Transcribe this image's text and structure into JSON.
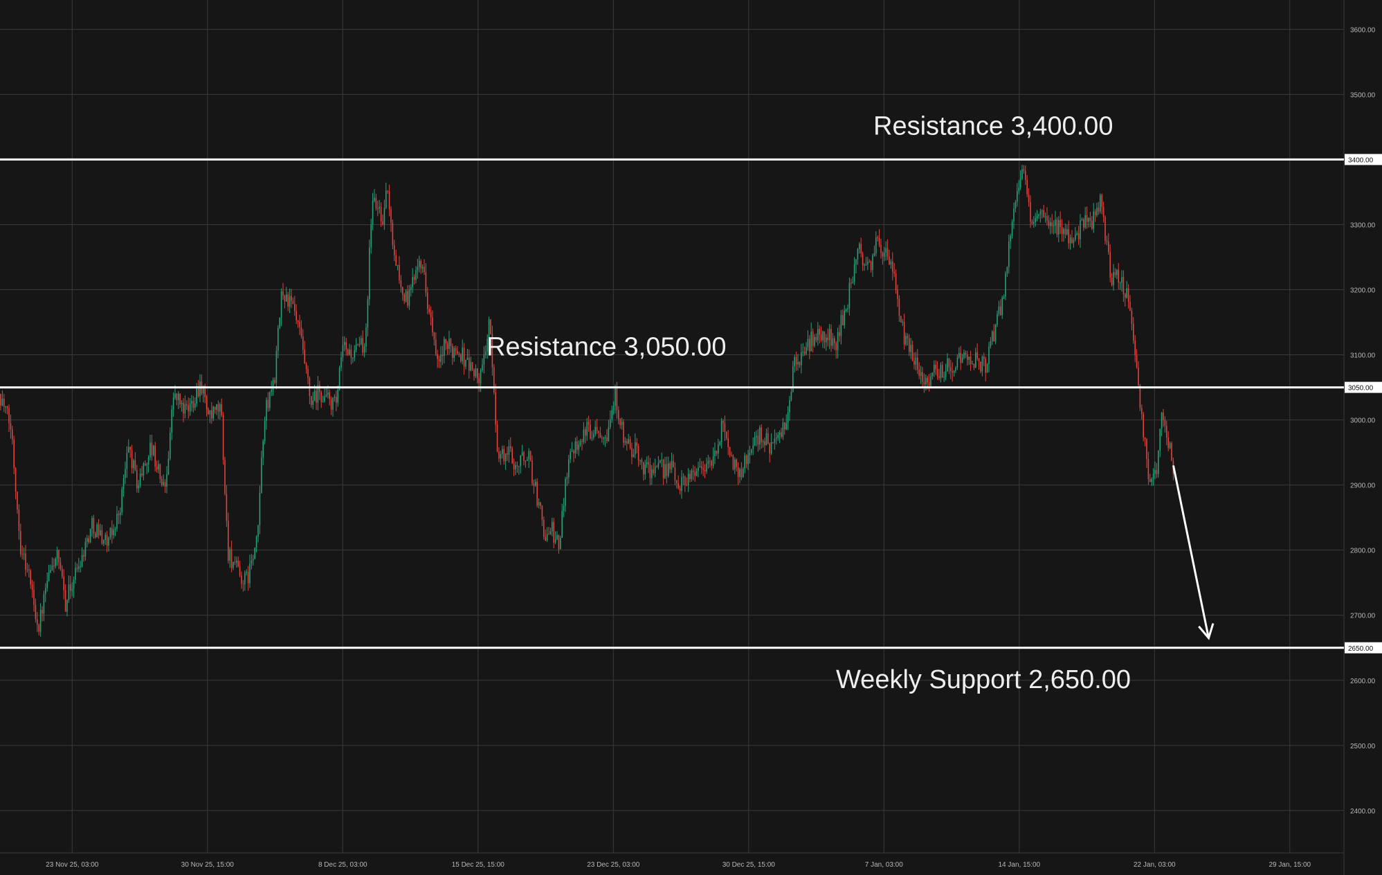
{
  "colors": {
    "background": "#161616",
    "grid": "#3a3a3a",
    "axis_text": "#b8b8b8",
    "level_line": "#ffffff",
    "candle_up": "#26a27a",
    "candle_down": "#e0443f",
    "arrow": "#ffffff"
  },
  "chart_data": {
    "type": "candlestick",
    "title": "",
    "xlabel": "",
    "ylabel": "",
    "ylim": [
      2335,
      3645
    ],
    "y_ticks": [
      {
        "value": 2400,
        "label": "2400.00"
      },
      {
        "value": 2500,
        "label": "2500.00"
      },
      {
        "value": 2600,
        "label": "2600.00"
      },
      {
        "value": 2700,
        "label": "2700.00"
      },
      {
        "value": 2800,
        "label": "2800.00"
      },
      {
        "value": 2900,
        "label": "2900.00"
      },
      {
        "value": 3000,
        "label": "3000.00"
      },
      {
        "value": 3100,
        "label": "3100.00"
      },
      {
        "value": 3200,
        "label": "3200.00"
      },
      {
        "value": 3300,
        "label": "3300.00"
      },
      {
        "value": 3500,
        "label": "3500.00"
      },
      {
        "value": 3600,
        "label": "3600.00"
      }
    ],
    "x_range": [
      "2025-11-19 03:00",
      "2026-02-01 15:00"
    ],
    "x_ticks": [
      {
        "date": "2025-11-23 03:00",
        "label": "23 Nov 25, 03:00"
      },
      {
        "date": "2025-11-30 15:00",
        "label": "30 Nov 25, 15:00"
      },
      {
        "date": "2025-12-08 03:00",
        "label": "8 Dec 25, 03:00"
      },
      {
        "date": "2025-12-15 15:00",
        "label": "15 Dec 25, 15:00"
      },
      {
        "date": "2025-12-23 03:00",
        "label": "23 Dec 25, 03:00"
      },
      {
        "date": "2025-12-30 15:00",
        "label": "30 Dec 25, 15:00"
      },
      {
        "date": "2026-01-07 03:00",
        "label": "7 Jan, 03:00"
      },
      {
        "date": "2026-01-14 15:00",
        "label": "14 Jan, 15:00"
      },
      {
        "date": "2026-01-22 03:00",
        "label": "22 Jan, 03:00"
      },
      {
        "date": "2026-01-29 15:00",
        "label": "29 Jan, 15:00"
      }
    ],
    "grid": true,
    "levels": [
      {
        "value": 3400,
        "axis_label": "3400.00",
        "annotation": "Resistance 3,400.00"
      },
      {
        "value": 3050,
        "axis_label": "3050.00",
        "annotation": "Resistance 3,050.00"
      },
      {
        "value": 2650,
        "axis_label": "2650.00",
        "annotation": "Weekly Support 2,650.00"
      }
    ],
    "projection_arrow": {
      "from": {
        "date": "2026-01-23 04:00",
        "value": 2930
      },
      "to": {
        "date": "2026-01-25 03:00",
        "value": 2665
      }
    },
    "price_path": [
      {
        "date": "2025-11-19 03:00",
        "close": 3040
      },
      {
        "date": "2025-11-19 18:00",
        "close": 2985
      },
      {
        "date": "2025-11-20 06:00",
        "close": 2810
      },
      {
        "date": "2025-11-20 18:00",
        "close": 2760
      },
      {
        "date": "2025-11-21 06:00",
        "close": 2680
      },
      {
        "date": "2025-11-21 18:00",
        "close": 2750
      },
      {
        "date": "2025-11-22 06:00",
        "close": 2795
      },
      {
        "date": "2025-11-22 18:00",
        "close": 2720
      },
      {
        "date": "2025-11-23 06:00",
        "close": 2760
      },
      {
        "date": "2025-11-24 06:00",
        "close": 2840
      },
      {
        "date": "2025-11-25 03:00",
        "close": 2810
      },
      {
        "date": "2025-11-25 18:00",
        "close": 2860
      },
      {
        "date": "2025-11-26 06:00",
        "close": 2960
      },
      {
        "date": "2025-11-26 18:00",
        "close": 2900
      },
      {
        "date": "2025-11-27 12:00",
        "close": 2960
      },
      {
        "date": "2025-11-28 06:00",
        "close": 2890
      },
      {
        "date": "2025-11-28 18:00",
        "close": 3040
      },
      {
        "date": "2025-11-29 12:00",
        "close": 3010
      },
      {
        "date": "2025-11-30 06:00",
        "close": 3060
      },
      {
        "date": "2025-11-30 18:00",
        "close": 3000
      },
      {
        "date": "2025-12-01 09:00",
        "close": 3020
      },
      {
        "date": "2025-12-01 18:00",
        "close": 2800
      },
      {
        "date": "2025-12-02 09:00",
        "close": 2760
      },
      {
        "date": "2025-12-02 18:00",
        "close": 2750
      },
      {
        "date": "2025-12-03 09:00",
        "close": 2810
      },
      {
        "date": "2025-12-03 18:00",
        "close": 3000
      },
      {
        "date": "2025-12-04 09:00",
        "close": 3070
      },
      {
        "date": "2025-12-04 18:00",
        "close": 3200
      },
      {
        "date": "2025-12-05 09:00",
        "close": 3170
      },
      {
        "date": "2025-12-05 18:00",
        "close": 3130
      },
      {
        "date": "2025-12-06 09:00",
        "close": 3020
      },
      {
        "date": "2025-12-06 18:00",
        "close": 3040
      },
      {
        "date": "2025-12-07 09:00",
        "close": 3030
      },
      {
        "date": "2025-12-07 18:00",
        "close": 3020
      },
      {
        "date": "2025-12-08 03:00",
        "close": 3110
      },
      {
        "date": "2025-12-08 18:00",
        "close": 3100
      },
      {
        "date": "2025-12-09 09:00",
        "close": 3120
      },
      {
        "date": "2025-12-09 18:00",
        "close": 3340
      },
      {
        "date": "2025-12-10 09:00",
        "close": 3310
      },
      {
        "date": "2025-12-10 15:00",
        "close": 3360
      },
      {
        "date": "2025-12-10 18:00",
        "close": 3300
      },
      {
        "date": "2025-12-11 09:00",
        "close": 3200
      },
      {
        "date": "2025-12-11 18:00",
        "close": 3180
      },
      {
        "date": "2025-12-12 09:00",
        "close": 3260
      },
      {
        "date": "2025-12-12 18:00",
        "close": 3200
      },
      {
        "date": "2025-12-13 09:00",
        "close": 3080
      },
      {
        "date": "2025-12-13 18:00",
        "close": 3110
      },
      {
        "date": "2025-12-14 12:00",
        "close": 3110
      },
      {
        "date": "2025-12-15 06:00",
        "close": 3080
      },
      {
        "date": "2025-12-15 18:00",
        "close": 3060
      },
      {
        "date": "2025-12-16 06:00",
        "close": 3150
      },
      {
        "date": "2025-12-16 18:00",
        "close": 2940
      },
      {
        "date": "2025-12-17 09:00",
        "close": 2950
      },
      {
        "date": "2025-12-17 18:00",
        "close": 2930
      },
      {
        "date": "2025-12-18 09:00",
        "close": 2950
      },
      {
        "date": "2025-12-18 18:00",
        "close": 2900
      },
      {
        "date": "2025-12-19 09:00",
        "close": 2820
      },
      {
        "date": "2025-12-19 18:00",
        "close": 2830
      },
      {
        "date": "2025-12-20 03:00",
        "close": 2800
      },
      {
        "date": "2025-12-20 12:00",
        "close": 2920
      },
      {
        "date": "2025-12-20 21:00",
        "close": 2960
      },
      {
        "date": "2025-12-21 12:00",
        "close": 2980
      },
      {
        "date": "2025-12-22 06:00",
        "close": 2990
      },
      {
        "date": "2025-12-22 18:00",
        "close": 2980
      },
      {
        "date": "2025-12-23 06:00",
        "close": 3040
      },
      {
        "date": "2025-12-23 18:00",
        "close": 2960
      },
      {
        "date": "2025-12-24 09:00",
        "close": 2950
      },
      {
        "date": "2025-12-24 18:00",
        "close": 2930
      },
      {
        "date": "2025-12-25 12:00",
        "close": 2920
      },
      {
        "date": "2025-12-26 06:00",
        "close": 2930
      },
      {
        "date": "2025-12-26 18:00",
        "close": 2900
      },
      {
        "date": "2025-12-27 12:00",
        "close": 2920
      },
      {
        "date": "2025-12-28 06:00",
        "close": 2930
      },
      {
        "date": "2025-12-28 18:00",
        "close": 2940
      },
      {
        "date": "2025-12-29 06:00",
        "close": 3000
      },
      {
        "date": "2025-12-29 18:00",
        "close": 2930
      },
      {
        "date": "2025-12-30 06:00",
        "close": 2920
      },
      {
        "date": "2025-12-30 18:00",
        "close": 2960
      },
      {
        "date": "2025-12-31 09:00",
        "close": 2980
      },
      {
        "date": "2025-12-31 18:00",
        "close": 2960
      },
      {
        "date": "2026-01-01 09:00",
        "close": 2970
      },
      {
        "date": "2026-01-01 18:00",
        "close": 3000
      },
      {
        "date": "2026-01-02 03:00",
        "close": 3080
      },
      {
        "date": "2026-01-02 18:00",
        "close": 3110
      },
      {
        "date": "2026-01-03 09:00",
        "close": 3130
      },
      {
        "date": "2026-01-03 18:00",
        "close": 3130
      },
      {
        "date": "2026-01-04 12:00",
        "close": 3120
      },
      {
        "date": "2026-01-05 06:00",
        "close": 3200
      },
      {
        "date": "2026-01-05 18:00",
        "close": 3260
      },
      {
        "date": "2026-01-06 09:00",
        "close": 3230
      },
      {
        "date": "2026-01-06 18:00",
        "close": 3280
      },
      {
        "date": "2026-01-07 06:00",
        "close": 3250
      },
      {
        "date": "2026-01-07 18:00",
        "close": 3210
      },
      {
        "date": "2026-01-08 06:00",
        "close": 3120
      },
      {
        "date": "2026-01-08 18:00",
        "close": 3100
      },
      {
        "date": "2026-01-09 09:00",
        "close": 3060
      },
      {
        "date": "2026-01-09 18:00",
        "close": 3070
      },
      {
        "date": "2026-01-10 12:00",
        "close": 3080
      },
      {
        "date": "2026-01-11 06:00",
        "close": 3090
      },
      {
        "date": "2026-01-11 18:00",
        "close": 3100
      },
      {
        "date": "2026-01-12 06:00",
        "close": 3090
      },
      {
        "date": "2026-01-12 18:00",
        "close": 3080
      },
      {
        "date": "2026-01-13 09:00",
        "close": 3150
      },
      {
        "date": "2026-01-13 18:00",
        "close": 3190
      },
      {
        "date": "2026-01-14 06:00",
        "close": 3320
      },
      {
        "date": "2026-01-14 18:00",
        "close": 3390
      },
      {
        "date": "2026-01-15 06:00",
        "close": 3310
      },
      {
        "date": "2026-01-15 18:00",
        "close": 3320
      },
      {
        "date": "2026-01-16 06:00",
        "close": 3290
      },
      {
        "date": "2026-01-16 18:00",
        "close": 3300
      },
      {
        "date": "2026-01-17 12:00",
        "close": 3280
      },
      {
        "date": "2026-01-18 06:00",
        "close": 3300
      },
      {
        "date": "2026-01-18 18:00",
        "close": 3310
      },
      {
        "date": "2026-01-19 03:00",
        "close": 3340
      },
      {
        "date": "2026-01-19 18:00",
        "close": 3210
      },
      {
        "date": "2026-01-20 06:00",
        "close": 3220
      },
      {
        "date": "2026-01-20 18:00",
        "close": 3180
      },
      {
        "date": "2026-01-21 06:00",
        "close": 3040
      },
      {
        "date": "2026-01-21 18:00",
        "close": 2920
      },
      {
        "date": "2026-01-22 06:00",
        "close": 2910
      },
      {
        "date": "2026-01-22 12:00",
        "close": 3030
      },
      {
        "date": "2026-01-22 18:00",
        "close": 2980
      },
      {
        "date": "2026-01-23 04:00",
        "close": 2930
      }
    ]
  }
}
